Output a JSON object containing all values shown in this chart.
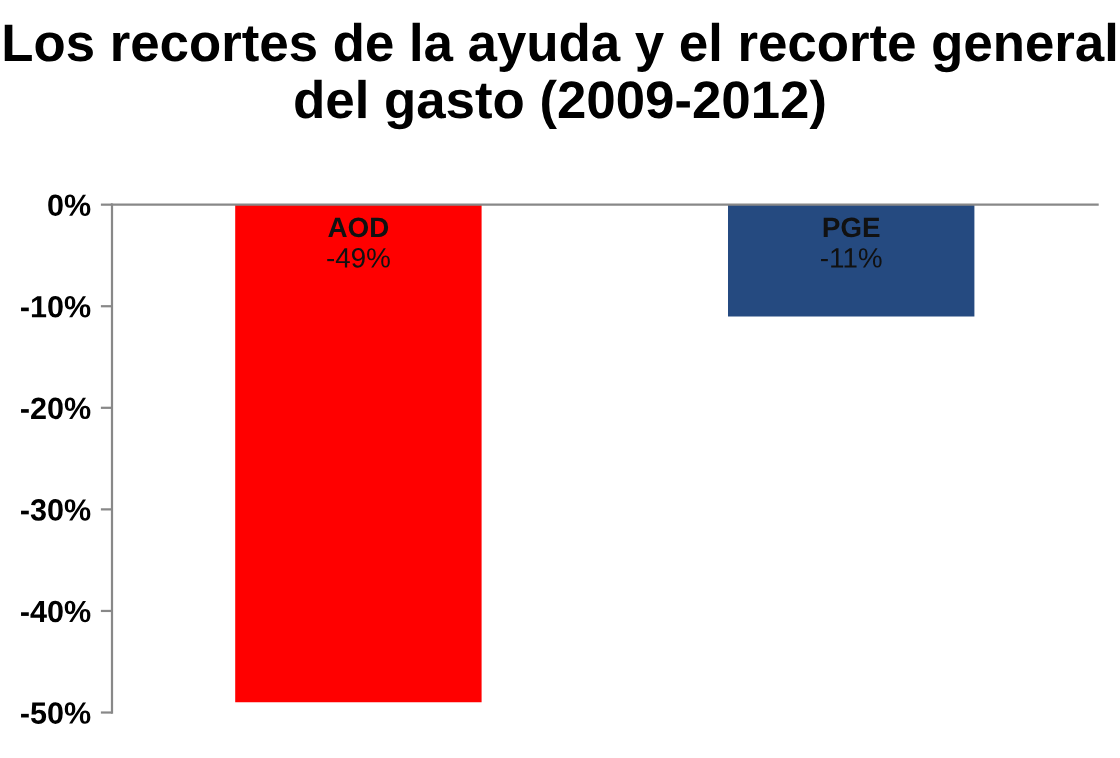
{
  "chart_data": {
    "type": "bar",
    "title": "Los recortes de la ayuda y el recorte general del gasto (2009-2012)",
    "categories": [
      "AOD",
      "PGE"
    ],
    "values": [
      -49,
      -11
    ],
    "colors": [
      "#ff0000",
      "#254a80"
    ],
    "value_labels": [
      "-49%",
      "-11%"
    ],
    "ylim": [
      -50,
      0
    ],
    "yticks": [
      {
        "value": 0,
        "label": "0%"
      },
      {
        "value": -10,
        "label": "-10%"
      },
      {
        "value": -20,
        "label": "-20%"
      },
      {
        "value": -30,
        "label": "-30%"
      },
      {
        "value": -40,
        "label": "-40%"
      },
      {
        "value": -50,
        "label": "-50%"
      }
    ],
    "grid": false,
    "legend": false
  }
}
